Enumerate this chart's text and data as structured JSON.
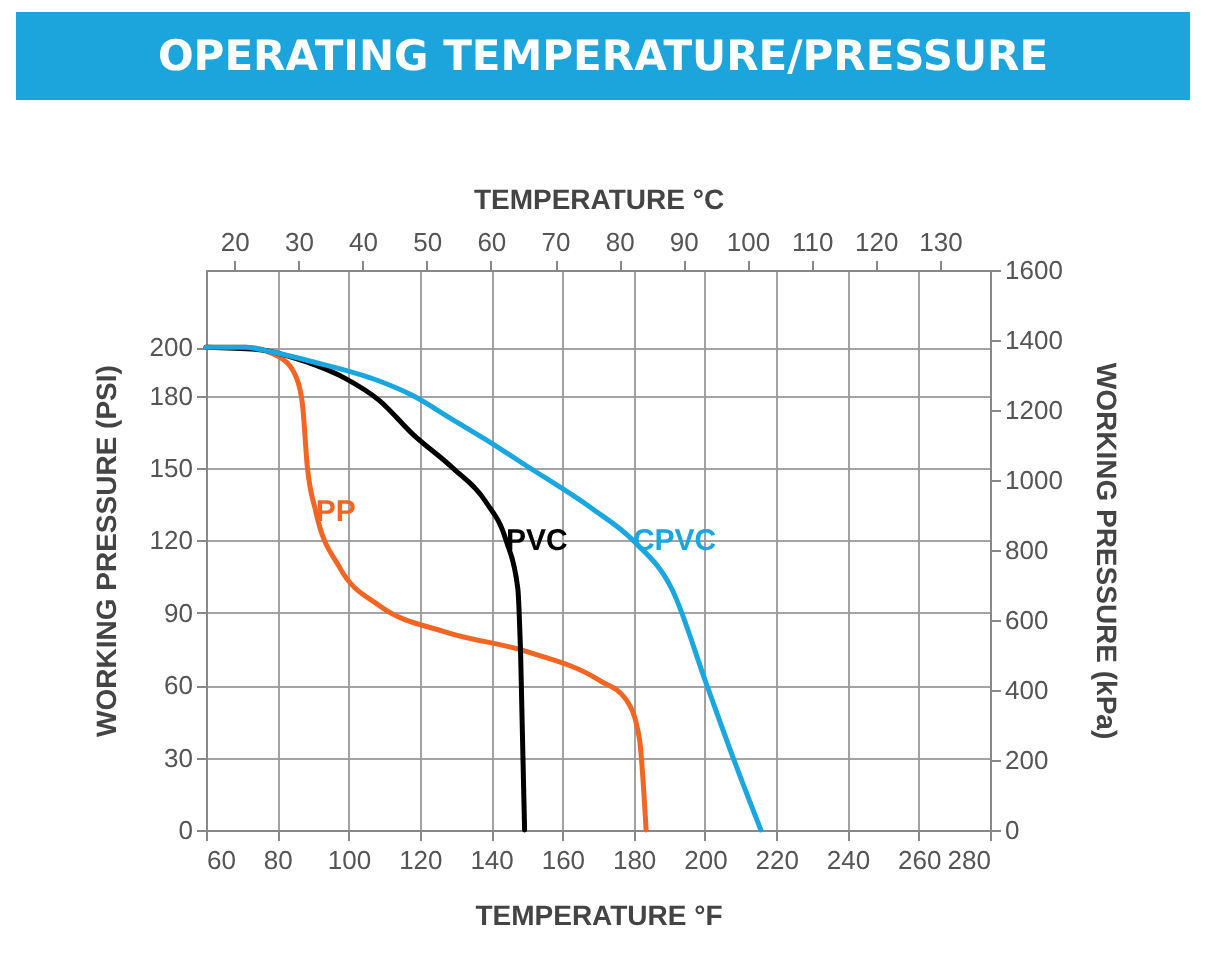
{
  "chart_data": {
    "type": "line",
    "title": "OPERATING TEMPERATURE/PRESSURE",
    "xlabel": "TEMPERATURE °F",
    "x2label": "TEMPERATURE °C",
    "ylabel": "WORKING PRESSURE (PSI)",
    "y2label": "WORKING PRESSURE (kPa)",
    "xlim": [
      60,
      280
    ],
    "xticks": [
      60,
      80,
      100,
      120,
      140,
      160,
      180,
      200,
      220,
      240,
      260,
      280
    ],
    "x2lim": [
      15.6,
      137.8
    ],
    "x2ticks": [
      20,
      30,
      40,
      50,
      60,
      70,
      80,
      90,
      100,
      110,
      120,
      130
    ],
    "ylim": [
      0,
      232
    ],
    "yticks": [
      0,
      30,
      60,
      90,
      120,
      150,
      180,
      200
    ],
    "y2lim": [
      0,
      1600
    ],
    "y2ticks": [
      0,
      200,
      400,
      600,
      800,
      1000,
      1200,
      1400,
      1600
    ],
    "grid": true,
    "legend": false,
    "marker": "none",
    "line_style": "solid",
    "series": [
      {
        "name": "PP",
        "color": "#f26522",
        "x": [
          60,
          71,
          80.5,
          85.2,
          87.1,
          88.4,
          90.8,
          97.4,
          108.6,
          127.3,
          149.8,
          170.4,
          177.9,
          181.6,
          183.5
        ],
        "values": [
          200,
          200,
          196,
          188,
          176,
          151,
          132,
          109,
          93,
          82,
          74,
          62,
          54,
          38,
          0
        ]
      },
      {
        "name": "PVC",
        "color": "#000000",
        "x": [
          60,
          75,
          88,
          99.2,
          108.6,
          118,
          129.2,
          138.5,
          144.2,
          147.5,
          148.3,
          149.4
        ],
        "values": [
          200,
          199,
          194,
          187,
          178,
          164,
          150,
          136,
          120,
          100,
          72,
          0
        ]
      },
      {
        "name": "CPVC",
        "color": "#1aa7e0",
        "x": [
          60,
          71,
          78.6,
          89.9,
          108.6,
          118,
          129.2,
          140.4,
          149.8,
          168.5,
          179.8,
          191,
          200.3,
          207.9,
          215.7
        ],
        "values": [
          200,
          200,
          198,
          194,
          186,
          180,
          170,
          160,
          151,
          133,
          120,
          99,
          61,
          30,
          0
        ]
      }
    ]
  }
}
